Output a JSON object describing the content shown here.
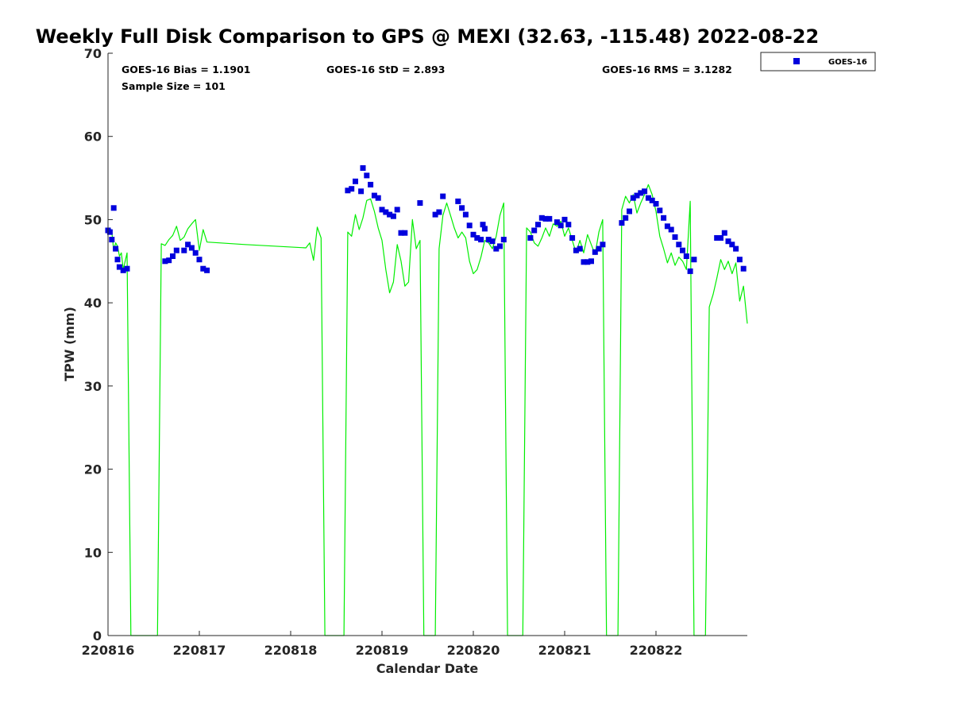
{
  "chart_data": {
    "type": "scatter",
    "title": "Weekly Full Disk Comparison to GPS @ MEXI (32.63, -115.48) 2022-08-22",
    "xlabel": "Calendar Date",
    "ylabel": "TPW (mm)",
    "xlim": [
      "2022-08-16 00:00",
      "2022-08-23 00:00"
    ],
    "ylim": [
      0,
      70
    ],
    "yticks": [
      0,
      10,
      20,
      30,
      40,
      50,
      60,
      70
    ],
    "xticks": [
      {
        "date": "2022-08-16 00:00",
        "label": "220816"
      },
      {
        "date": "2022-08-17 00:00",
        "label": "220817"
      },
      {
        "date": "2022-08-18 00:00",
        "label": "220818"
      },
      {
        "date": "2022-08-19 00:00",
        "label": "220819"
      },
      {
        "date": "2022-08-20 00:00",
        "label": "220820"
      },
      {
        "date": "2022-08-21 00:00",
        "label": "220821"
      },
      {
        "date": "2022-08-22 00:00",
        "label": "220822"
      }
    ],
    "grid": false,
    "legend_position": "outside-top-right",
    "stats": {
      "bias": "GOES-16 Bias = 1.1901",
      "std": "GOES-16 StD = 2.893",
      "rms": "GOES-16 RMS = 3.1282",
      "sample": "Sample Size = 101"
    },
    "series": [
      {
        "name": "GOES-16",
        "marker": "square",
        "color": "#0000dd",
        "points": [
          [
            "2022-08-16 00:00",
            48.7
          ],
          [
            "2022-08-16 00:30",
            48.5
          ],
          [
            "2022-08-16 01:00",
            47.6
          ],
          [
            "2022-08-16 01:30",
            51.4
          ],
          [
            "2022-08-16 02:00",
            46.5
          ],
          [
            "2022-08-16 02:30",
            45.2
          ],
          [
            "2022-08-16 03:00",
            44.3
          ],
          [
            "2022-08-16 04:00",
            43.9
          ],
          [
            "2022-08-16 05:00",
            44.1
          ],
          [
            "2022-08-16 15:00",
            45.0
          ],
          [
            "2022-08-16 16:00",
            45.1
          ],
          [
            "2022-08-16 17:00",
            45.6
          ],
          [
            "2022-08-16 18:00",
            46.3
          ],
          [
            "2022-08-16 20:00",
            46.3
          ],
          [
            "2022-08-16 21:00",
            47.0
          ],
          [
            "2022-08-16 22:00",
            46.6
          ],
          [
            "2022-08-16 23:00",
            46.0
          ],
          [
            "2022-08-17 00:00",
            45.2
          ],
          [
            "2022-08-17 01:00",
            44.1
          ],
          [
            "2022-08-17 02:00",
            43.9
          ],
          [
            "2022-08-18 15:00",
            53.5
          ],
          [
            "2022-08-18 16:00",
            53.7
          ],
          [
            "2022-08-18 17:00",
            54.6
          ],
          [
            "2022-08-18 18:30",
            53.4
          ],
          [
            "2022-08-18 19:00",
            56.2
          ],
          [
            "2022-08-18 20:00",
            55.3
          ],
          [
            "2022-08-18 21:00",
            54.2
          ],
          [
            "2022-08-18 22:00",
            52.9
          ],
          [
            "2022-08-18 23:00",
            52.6
          ],
          [
            "2022-08-19 00:00",
            51.2
          ],
          [
            "2022-08-19 01:00",
            50.9
          ],
          [
            "2022-08-19 02:00",
            50.6
          ],
          [
            "2022-08-19 03:00",
            50.4
          ],
          [
            "2022-08-19 04:00",
            51.2
          ],
          [
            "2022-08-19 05:00",
            48.4
          ],
          [
            "2022-08-19 06:00",
            48.4
          ],
          [
            "2022-08-19 10:00",
            52.0
          ],
          [
            "2022-08-19 14:00",
            50.6
          ],
          [
            "2022-08-19 15:00",
            50.9
          ],
          [
            "2022-08-19 16:00",
            52.8
          ],
          [
            "2022-08-19 20:00",
            52.2
          ],
          [
            "2022-08-19 21:00",
            51.4
          ],
          [
            "2022-08-19 22:00",
            50.6
          ],
          [
            "2022-08-19 23:00",
            49.3
          ],
          [
            "2022-08-20 00:00",
            48.2
          ],
          [
            "2022-08-20 01:00",
            47.8
          ],
          [
            "2022-08-20 02:00",
            47.6
          ],
          [
            "2022-08-20 02:30",
            49.4
          ],
          [
            "2022-08-20 03:00",
            48.9
          ],
          [
            "2022-08-20 04:00",
            47.6
          ],
          [
            "2022-08-20 05:00",
            47.4
          ],
          [
            "2022-08-20 06:00",
            46.5
          ],
          [
            "2022-08-20 07:00",
            46.8
          ],
          [
            "2022-08-20 08:00",
            47.6
          ],
          [
            "2022-08-20 15:00",
            47.8
          ],
          [
            "2022-08-20 16:00",
            48.7
          ],
          [
            "2022-08-20 17:00",
            49.4
          ],
          [
            "2022-08-20 18:00",
            50.2
          ],
          [
            "2022-08-20 19:00",
            50.1
          ],
          [
            "2022-08-20 20:00",
            50.1
          ],
          [
            "2022-08-20 22:00",
            49.7
          ],
          [
            "2022-08-20 23:00",
            49.3
          ],
          [
            "2022-08-21 00:00",
            50.0
          ],
          [
            "2022-08-21 01:00",
            49.4
          ],
          [
            "2022-08-21 02:00",
            47.8
          ],
          [
            "2022-08-21 03:00",
            46.3
          ],
          [
            "2022-08-21 04:00",
            46.5
          ],
          [
            "2022-08-21 05:00",
            44.9
          ],
          [
            "2022-08-21 06:00",
            44.9
          ],
          [
            "2022-08-21 07:00",
            45.0
          ],
          [
            "2022-08-21 08:00",
            46.1
          ],
          [
            "2022-08-21 09:00",
            46.5
          ],
          [
            "2022-08-21 10:00",
            47.0
          ],
          [
            "2022-08-21 15:00",
            49.6
          ],
          [
            "2022-08-21 16:00",
            50.2
          ],
          [
            "2022-08-21 17:00",
            51.0
          ],
          [
            "2022-08-21 18:00",
            52.6
          ],
          [
            "2022-08-21 19:00",
            52.9
          ],
          [
            "2022-08-21 20:00",
            53.2
          ],
          [
            "2022-08-21 21:00",
            53.4
          ],
          [
            "2022-08-21 22:00",
            52.6
          ],
          [
            "2022-08-21 23:00",
            52.3
          ],
          [
            "2022-08-22 00:00",
            51.9
          ],
          [
            "2022-08-22 01:00",
            51.1
          ],
          [
            "2022-08-22 02:00",
            50.2
          ],
          [
            "2022-08-22 03:00",
            49.2
          ],
          [
            "2022-08-22 04:00",
            48.8
          ],
          [
            "2022-08-22 05:00",
            47.9
          ],
          [
            "2022-08-22 06:00",
            47.0
          ],
          [
            "2022-08-22 07:00",
            46.3
          ],
          [
            "2022-08-22 08:00",
            45.6
          ],
          [
            "2022-08-22 09:00",
            43.8
          ],
          [
            "2022-08-22 10:00",
            45.2
          ],
          [
            "2022-08-22 16:00",
            47.8
          ],
          [
            "2022-08-22 17:00",
            47.8
          ],
          [
            "2022-08-22 18:00",
            48.4
          ],
          [
            "2022-08-22 19:00",
            47.4
          ],
          [
            "2022-08-22 20:00",
            47.0
          ],
          [
            "2022-08-22 21:00",
            46.5
          ],
          [
            "2022-08-22 22:00",
            45.2
          ],
          [
            "2022-08-22 23:00",
            44.1
          ]
        ]
      },
      {
        "name": "",
        "line": true,
        "color": "#00ee00",
        "points": [
          [
            "2022-08-16 00:00",
            48.5
          ],
          [
            "2022-08-16 00:30",
            49.0
          ],
          [
            "2022-08-16 01:00",
            48.5
          ],
          [
            "2022-08-16 01:30",
            46.3
          ],
          [
            "2022-08-16 02:00",
            47.2
          ],
          [
            "2022-08-16 02:30",
            46.8
          ],
          [
            "2022-08-16 03:00",
            45.6
          ],
          [
            "2022-08-16 03:30",
            46.0
          ],
          [
            "2022-08-16 04:00",
            44.0
          ],
          [
            "2022-08-16 05:00",
            46.0
          ],
          [
            "2022-08-16 06:00",
            0
          ],
          [
            "2022-08-16 13:00",
            0
          ],
          [
            "2022-08-16 14:00",
            47.1
          ],
          [
            "2022-08-16 15:00",
            46.9
          ],
          [
            "2022-08-16 16:00",
            47.6
          ],
          [
            "2022-08-16 17:00",
            48.1
          ],
          [
            "2022-08-16 18:00",
            49.2
          ],
          [
            "2022-08-16 19:00",
            47.5
          ],
          [
            "2022-08-16 20:00",
            47.9
          ],
          [
            "2022-08-16 21:00",
            48.9
          ],
          [
            "2022-08-16 22:00",
            49.5
          ],
          [
            "2022-08-16 23:00",
            50.0
          ],
          [
            "2022-08-17 00:00",
            46.3
          ],
          [
            "2022-08-17 01:00",
            48.8
          ],
          [
            "2022-08-17 02:00",
            47.3
          ],
          [
            "2022-08-17 12:00",
            47.0
          ],
          [
            "2022-08-18 04:00",
            46.6
          ],
          [
            "2022-08-18 05:00",
            47.2
          ],
          [
            "2022-08-18 06:00",
            45.1
          ],
          [
            "2022-08-18 07:00",
            49.1
          ],
          [
            "2022-08-18 08:00",
            47.8
          ],
          [
            "2022-08-18 09:00",
            0
          ],
          [
            "2022-08-18 14:00",
            0
          ],
          [
            "2022-08-18 15:00",
            48.5
          ],
          [
            "2022-08-18 16:00",
            48.0
          ],
          [
            "2022-08-18 17:00",
            50.6
          ],
          [
            "2022-08-18 18:00",
            48.8
          ],
          [
            "2022-08-18 19:00",
            50.2
          ],
          [
            "2022-08-18 20:00",
            52.3
          ],
          [
            "2022-08-18 21:00",
            52.5
          ],
          [
            "2022-08-18 22:00",
            51.0
          ],
          [
            "2022-08-18 23:00",
            49.0
          ],
          [
            "2022-08-19 00:00",
            47.5
          ],
          [
            "2022-08-19 01:00",
            44.0
          ],
          [
            "2022-08-19 02:00",
            41.2
          ],
          [
            "2022-08-19 03:00",
            42.5
          ],
          [
            "2022-08-19 04:00",
            47.0
          ],
          [
            "2022-08-19 05:00",
            45.0
          ],
          [
            "2022-08-19 06:00",
            42.0
          ],
          [
            "2022-08-19 07:00",
            42.5
          ],
          [
            "2022-08-19 08:00",
            50.0
          ],
          [
            "2022-08-19 09:00",
            46.5
          ],
          [
            "2022-08-19 10:00",
            47.5
          ],
          [
            "2022-08-19 11:00",
            0
          ],
          [
            "2022-08-19 14:00",
            0
          ],
          [
            "2022-08-19 15:00",
            46.5
          ],
          [
            "2022-08-19 16:00",
            50.5
          ],
          [
            "2022-08-19 17:00",
            52.0
          ],
          [
            "2022-08-19 18:00",
            50.5
          ],
          [
            "2022-08-19 19:00",
            49.0
          ],
          [
            "2022-08-19 20:00",
            47.8
          ],
          [
            "2022-08-19 21:00",
            48.5
          ],
          [
            "2022-08-19 22:00",
            47.8
          ],
          [
            "2022-08-19 23:00",
            45.0
          ],
          [
            "2022-08-20 00:00",
            43.5
          ],
          [
            "2022-08-20 01:00",
            44.0
          ],
          [
            "2022-08-20 02:00",
            45.5
          ],
          [
            "2022-08-20 03:00",
            47.5
          ],
          [
            "2022-08-20 04:00",
            47.2
          ],
          [
            "2022-08-20 05:00",
            46.5
          ],
          [
            "2022-08-20 06:00",
            48.0
          ],
          [
            "2022-08-20 07:00",
            50.5
          ],
          [
            "2022-08-20 08:00",
            52.0
          ],
          [
            "2022-08-20 09:00",
            0
          ],
          [
            "2022-08-20 13:00",
            0
          ],
          [
            "2022-08-20 14:00",
            49.0
          ],
          [
            "2022-08-20 15:00",
            48.5
          ],
          [
            "2022-08-20 16:00",
            47.2
          ],
          [
            "2022-08-20 17:00",
            46.8
          ],
          [
            "2022-08-20 18:00",
            47.8
          ],
          [
            "2022-08-20 19:00",
            49.0
          ],
          [
            "2022-08-20 20:00",
            48.0
          ],
          [
            "2022-08-20 21:00",
            49.5
          ],
          [
            "2022-08-20 22:00",
            49.2
          ],
          [
            "2022-08-20 23:00",
            49.8
          ],
          [
            "2022-08-21 00:00",
            48.0
          ],
          [
            "2022-08-21 01:00",
            49.0
          ],
          [
            "2022-08-21 02:00",
            47.5
          ],
          [
            "2022-08-21 03:00",
            46.0
          ],
          [
            "2022-08-21 04:00",
            47.5
          ],
          [
            "2022-08-21 05:00",
            46.0
          ],
          [
            "2022-08-21 06:00",
            48.2
          ],
          [
            "2022-08-21 07:00",
            47.0
          ],
          [
            "2022-08-21 08:00",
            45.8
          ],
          [
            "2022-08-21 09:00",
            48.5
          ],
          [
            "2022-08-21 10:00",
            50.0
          ],
          [
            "2022-08-21 11:00",
            0
          ],
          [
            "2022-08-21 14:00",
            0
          ],
          [
            "2022-08-21 15:00",
            51.2
          ],
          [
            "2022-08-21 16:00",
            52.8
          ],
          [
            "2022-08-21 17:00",
            52.0
          ],
          [
            "2022-08-21 18:00",
            53.0
          ],
          [
            "2022-08-21 19:00",
            50.8
          ],
          [
            "2022-08-21 20:00",
            52.0
          ],
          [
            "2022-08-21 21:00",
            53.0
          ],
          [
            "2022-08-21 22:00",
            54.2
          ],
          [
            "2022-08-21 23:00",
            53.0
          ],
          [
            "2022-08-22 00:00",
            51.0
          ],
          [
            "2022-08-22 01:00",
            48.0
          ],
          [
            "2022-08-22 02:00",
            46.5
          ],
          [
            "2022-08-22 03:00",
            44.8
          ],
          [
            "2022-08-22 04:00",
            46.0
          ],
          [
            "2022-08-22 05:00",
            44.5
          ],
          [
            "2022-08-22 06:00",
            45.5
          ],
          [
            "2022-08-22 07:00",
            45.0
          ],
          [
            "2022-08-22 08:00",
            44.0
          ],
          [
            "2022-08-22 09:00",
            52.2
          ],
          [
            "2022-08-22 10:00",
            0
          ],
          [
            "2022-08-22 13:00",
            0
          ],
          [
            "2022-08-22 14:00",
            39.5
          ],
          [
            "2022-08-22 15:00",
            41.0
          ],
          [
            "2022-08-22 16:00",
            43.0
          ],
          [
            "2022-08-22 17:00",
            45.2
          ],
          [
            "2022-08-22 18:00",
            44.0
          ],
          [
            "2022-08-22 19:00",
            45.0
          ],
          [
            "2022-08-22 20:00",
            43.5
          ],
          [
            "2022-08-22 21:00",
            44.8
          ],
          [
            "2022-08-22 22:00",
            40.2
          ],
          [
            "2022-08-22 23:00",
            42.0
          ],
          [
            "2022-08-23 00:00",
            37.5
          ]
        ]
      }
    ]
  }
}
